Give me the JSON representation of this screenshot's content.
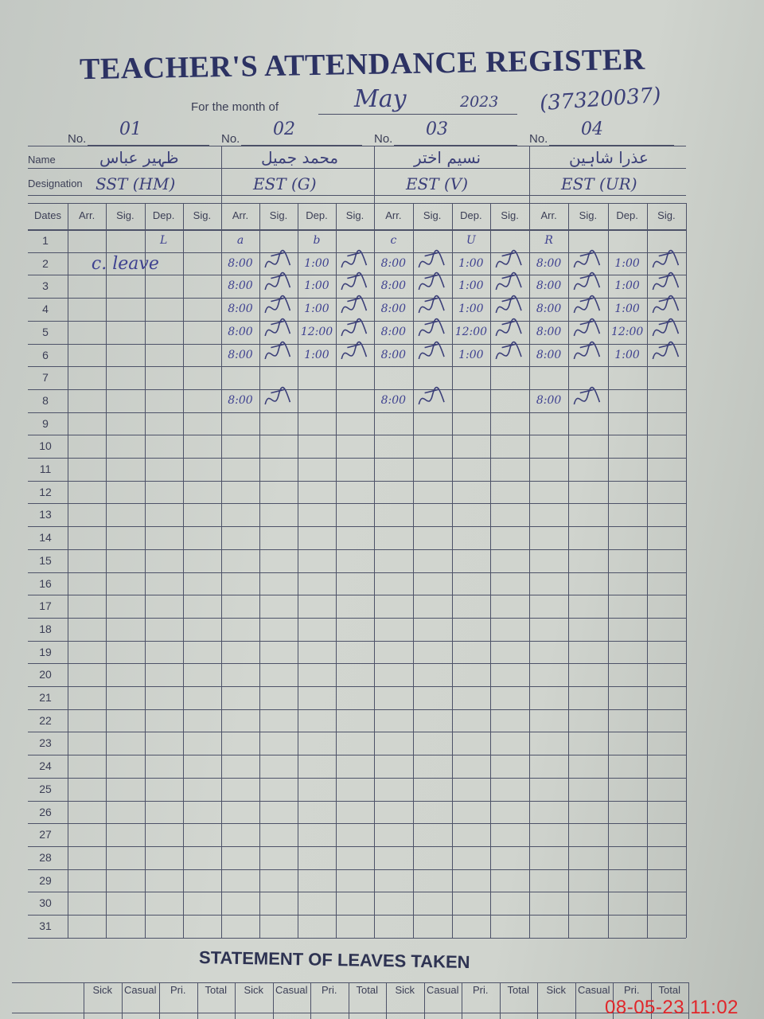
{
  "header": {
    "title": "TEACHER'S ATTENDANCE REGISTER",
    "month_label": "For the month of",
    "month_value": "May",
    "year": "2023",
    "code": "(37320037)"
  },
  "teachers": [
    {
      "no_label": "No.",
      "no": "01",
      "name": "ظہیر عباس",
      "designation": "SST (HM)"
    },
    {
      "no_label": "No.",
      "no": "02",
      "name": "محمد جمیل",
      "designation": "EST (G)"
    },
    {
      "no_label": "No.",
      "no": "03",
      "name": "نسیم اختر",
      "designation": "EST (V)"
    },
    {
      "no_label": "No.",
      "no": "04",
      "name": "عذرا شاہین",
      "designation": "EST (UR)"
    }
  ],
  "labels": {
    "name": "Name",
    "designation": "Designation"
  },
  "columns": {
    "dates": "Dates",
    "sub": [
      "Arr.",
      "Sig.",
      "Dep.",
      "Sig."
    ]
  },
  "dates": [
    "1",
    "2",
    "3",
    "4",
    "5",
    "6",
    "7",
    "8",
    "9",
    "10",
    "11",
    "12",
    "13",
    "14",
    "15",
    "16",
    "17",
    "18",
    "19",
    "20",
    "21",
    "22",
    "23",
    "24",
    "25",
    "26",
    "27",
    "28",
    "29",
    "30",
    "31"
  ],
  "entries": [
    {
      "date": "1",
      "cells": [
        "",
        "",
        "L",
        "",
        "a",
        "",
        "b",
        "",
        "c",
        "",
        "U",
        "",
        "R",
        "",
        "",
        ""
      ]
    },
    {
      "date": "2",
      "cells": [
        "c. leave",
        "",
        "",
        "",
        "8:00",
        "sig",
        "1:00",
        "sig",
        "8:00",
        "sig",
        "1:00",
        "sig",
        "8:00",
        "sig",
        "1:00",
        "sig"
      ]
    },
    {
      "date": "3",
      "cells": [
        "",
        "",
        "",
        "",
        "8:00",
        "sig",
        "1:00",
        "sig",
        "8:00",
        "sig",
        "1:00",
        "sig",
        "8:00",
        "sig",
        "1:00",
        "sig"
      ]
    },
    {
      "date": "4",
      "cells": [
        "",
        "",
        "",
        "",
        "8:00",
        "sig",
        "1:00",
        "sig",
        "8:00",
        "sig",
        "1:00",
        "sig",
        "8:00",
        "sig",
        "1:00",
        "sig"
      ]
    },
    {
      "date": "5",
      "cells": [
        "",
        "",
        "",
        "",
        "8:00",
        "sig",
        "12:00",
        "sig",
        "8:00",
        "sig",
        "12:00",
        "sig",
        "8:00",
        "sig",
        "12:00",
        "sig"
      ]
    },
    {
      "date": "6",
      "cells": [
        "",
        "",
        "",
        "",
        "8:00",
        "sig",
        "1:00",
        "sig",
        "8:00",
        "sig",
        "1:00",
        "sig",
        "8:00",
        "sig",
        "1:00",
        "sig"
      ]
    },
    {
      "date": "8",
      "cells": [
        "",
        "",
        "",
        "",
        "8:00",
        "sig",
        "",
        "",
        "8:00",
        "sig",
        "",
        "",
        "8:00",
        "sig",
        "",
        ""
      ]
    }
  ],
  "statement": {
    "title": "STATEMENT OF LEAVES TAKEN",
    "columns": [
      "Sick",
      "Casual",
      "Pri.",
      "Total",
      "Sick",
      "Casual",
      "Pri.",
      "Total",
      "Sick",
      "Casual",
      "Pri.",
      "Total",
      "Sick",
      "Casual",
      "Pri.",
      "Total"
    ]
  },
  "timestamp": "08-05-23  11:02",
  "colors": {
    "ink": "#3b3f78",
    "print": "#2c3263",
    "paper": "#ced3cd",
    "timestamp": "#e0262a"
  }
}
